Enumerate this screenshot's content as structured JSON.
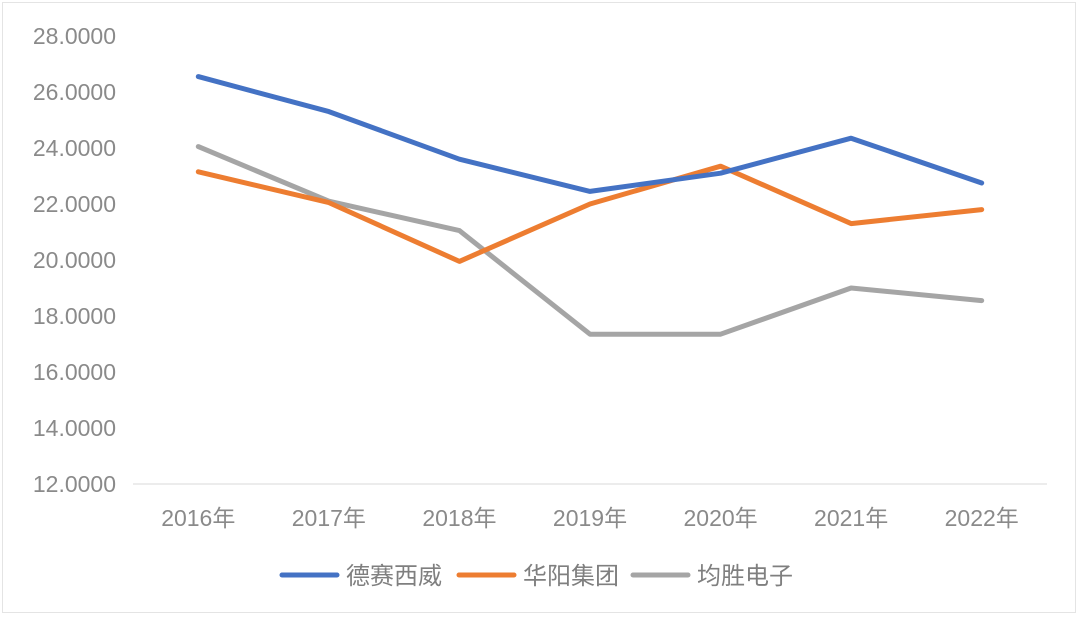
{
  "chart_data": {
    "type": "line",
    "categories": [
      "2016年",
      "2017年",
      "2018年",
      "2019年",
      "2020年",
      "2021年",
      "2022年"
    ],
    "series": [
      {
        "name": "德赛西威",
        "color": "#4472C4",
        "values": [
          26.55,
          25.3,
          23.6,
          22.45,
          23.1,
          24.35,
          22.75
        ]
      },
      {
        "name": "华阳集团",
        "color": "#ED7D31",
        "values": [
          23.15,
          22.05,
          19.95,
          22.0,
          23.35,
          21.3,
          21.8
        ]
      },
      {
        "name": "均胜电子",
        "color": "#A5A5A5",
        "values": [
          24.05,
          22.1,
          21.05,
          17.35,
          17.35,
          19.0,
          18.55
        ]
      }
    ],
    "ylim": [
      12,
      28
    ],
    "yticks": [
      "12.0000",
      "14.0000",
      "16.0000",
      "18.0000",
      "20.0000",
      "22.0000",
      "24.0000",
      "26.0000",
      "28.0000"
    ],
    "grid": false,
    "legend": "bottom"
  }
}
